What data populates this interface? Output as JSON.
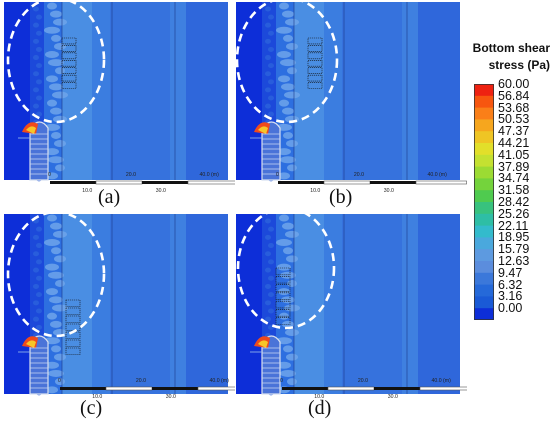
{
  "panels": [
    {
      "id": "a",
      "caption": "(a)",
      "scale_major": [
        "0",
        "20.0",
        "40.0 (m)"
      ],
      "scale_minor": [
        "10.0",
        "30.0"
      ]
    },
    {
      "id": "b",
      "caption": "(b)",
      "scale_major": [
        "0",
        "20.0",
        "40.0 (m)"
      ],
      "scale_minor": [
        "10.0",
        "30.0"
      ]
    },
    {
      "id": "c",
      "caption": "(c)",
      "scale_major": [
        "0",
        "20.0",
        "40.0 (m)"
      ],
      "scale_minor": [
        "10.0",
        "30.0"
      ]
    },
    {
      "id": "d",
      "caption": "(d)",
      "scale_major": [
        "0",
        "20.0",
        "40.0 (m)"
      ],
      "scale_minor": [
        "10.0",
        "30.0"
      ]
    }
  ],
  "colorbar": {
    "title_line1": "Bottom shear",
    "title_line2": "stress (Pa)",
    "labels": [
      "60.00",
      "56.84",
      "53.68",
      "50.53",
      "47.37",
      "44.21",
      "41.05",
      "37.89",
      "34.74",
      "31.58",
      "28.42",
      "25.26",
      "22.11",
      "18.95",
      "15.79",
      "12.63",
      "9.47",
      "6.32",
      "3.16",
      "0.00"
    ],
    "colors": [
      "#ee2211",
      "#f7560f",
      "#fa7f18",
      "#f6a61e",
      "#efc524",
      "#e2df2a",
      "#c4e131",
      "#9cdb33",
      "#74d33c",
      "#4fcb4f",
      "#38c27e",
      "#2ebea5",
      "#33bbcc",
      "#4aa8dd",
      "#5d9ae0",
      "#5b8ddd",
      "#3b78da",
      "#2569d9",
      "#1a5ad6",
      "#0d2ed8"
    ]
  }
}
